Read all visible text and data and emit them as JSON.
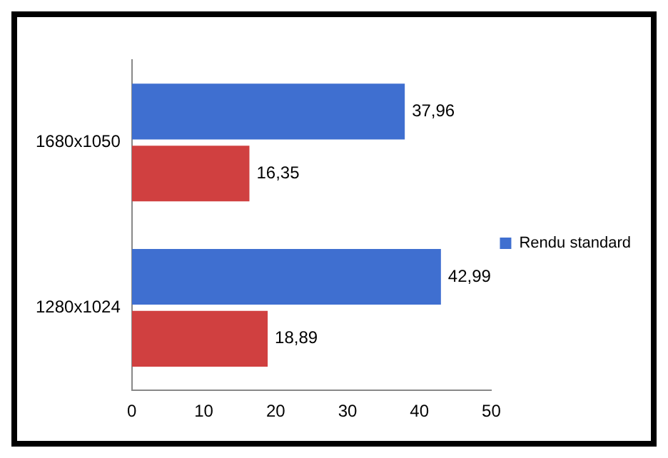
{
  "chart_data": {
    "type": "bar",
    "orientation": "horizontal",
    "categories": [
      "1680x1050",
      "1280x1024"
    ],
    "series": [
      {
        "name": "Rendu standard",
        "color": "#3f6fd0",
        "values": [
          37.96,
          42.99
        ],
        "value_labels": [
          "37,96",
          "42,99"
        ]
      },
      {
        "color": "#d04040",
        "values": [
          16.35,
          18.89
        ],
        "value_labels": [
          "16,35",
          "18,89"
        ]
      }
    ],
    "xlim": [
      0,
      50
    ],
    "xticks": [
      0,
      10,
      20,
      30,
      40,
      50
    ],
    "grid": false,
    "legend": "right"
  }
}
